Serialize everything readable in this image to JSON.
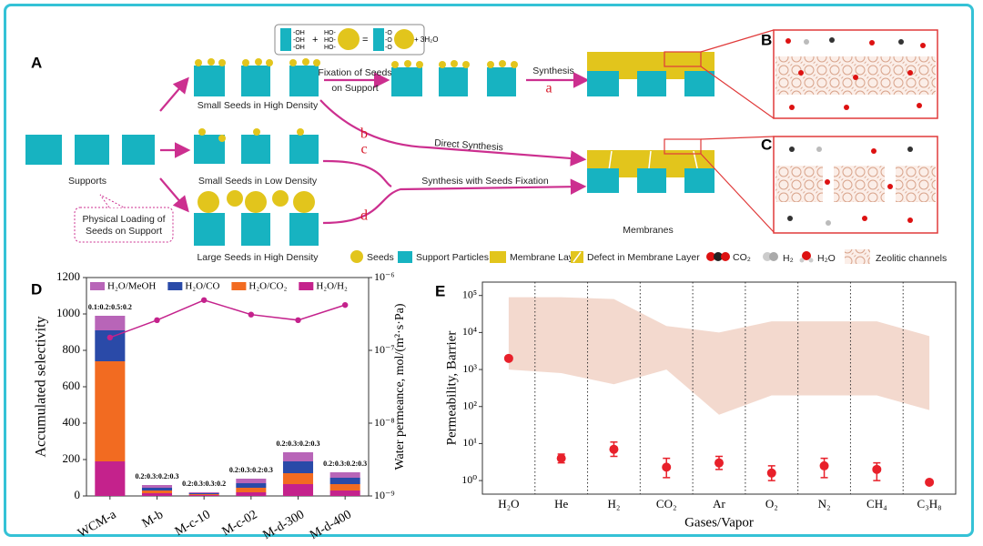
{
  "diagram": {
    "panel_labels": [
      "A",
      "B",
      "C"
    ],
    "equation": {
      "left": [
        "-OH",
        "-OH",
        "-OH"
      ],
      "middle": [
        "HO-",
        "HO-",
        "HO-"
      ],
      "product": [
        "-O",
        "-O",
        "-O"
      ],
      "plus": "+",
      "equals": "=",
      "byproduct": "+ 3H₂O"
    },
    "supports": "Supports",
    "seed_states": [
      "Small Seeds in High Density",
      "Small Seeds in Low Density",
      "Large Seeds in High Density"
    ],
    "callout": [
      "Physical Loading of",
      "Seeds on Support"
    ],
    "fixation": [
      "Fixation of Seeds",
      "on Support"
    ],
    "synthesis": "Synthesis",
    "routes": [
      "a",
      "b",
      "c",
      "d"
    ],
    "direct": "Direct Synthesis",
    "seeded": "Synthesis with Seeds Fixation",
    "membranes": "Membranes",
    "legend": [
      "Seeds",
      "Support Particles",
      "Membrane Layer",
      "Defect in Membrane Layer",
      "CO₂",
      "H₂",
      "H₂O",
      "Zeolitic channels"
    ]
  },
  "chart_data": [
    {
      "type": "bar",
      "panel": "D",
      "categories": [
        "WCM-a",
        "M-b",
        "M-c-10",
        "M-c-02",
        "M-d-300",
        "M-d-400"
      ],
      "annotations": [
        "0.1:0.2:0.5:0.2",
        "0.2:0.3:0.2:0.3",
        "0.2:0.3:0.3:0.2",
        "0.2:0.3:0.2:0.3",
        "0.2:0.3:0.2:0.3",
        "0.2:0.3:0.2:0.3"
      ],
      "series": [
        {
          "name": "H₂O/H₂",
          "color": "#c4228c",
          "values": [
            190,
            15,
            5,
            20,
            65,
            30
          ]
        },
        {
          "name": "H₂O/CO₂",
          "color": "#f26b21",
          "values": [
            550,
            15,
            5,
            25,
            60,
            35
          ]
        },
        {
          "name": "H₂O/CO",
          "color": "#2a4aa8",
          "values": [
            170,
            15,
            5,
            25,
            65,
            35
          ]
        },
        {
          "name": "H₂O/MeOH",
          "color": "#b865b8",
          "values": [
            80,
            15,
            5,
            25,
            50,
            30
          ]
        },
        {
          "type": "line",
          "axis": "y2",
          "color": "#c4228c",
          "values": [
            1.5e-07,
            2.6e-07,
            4.9e-07,
            3.1e-07,
            2.6e-07,
            4.2e-07
          ]
        }
      ],
      "y_label": "Accumulated selectivity",
      "y2_label": "Water permeance, mol/(m²·s·Pa)",
      "ylim": [
        0,
        1200
      ],
      "yticks": [
        0,
        200,
        400,
        600,
        800,
        1000,
        1200
      ],
      "y2lim": [
        1e-09,
        1e-06
      ],
      "y2_log": true,
      "y2ticks": [
        {
          "value": 1e-09,
          "label": "10⁻⁹"
        },
        {
          "value": 1e-08,
          "label": "10⁻⁸"
        },
        {
          "value": 1e-07,
          "label": "10⁻⁷"
        },
        {
          "value": 1e-06,
          "label": "10⁻⁶"
        }
      ]
    },
    {
      "type": "scatter",
      "panel": "E",
      "categories": [
        "H₂O",
        "He",
        "H₂",
        "CO₂",
        "Ar",
        "O₂",
        "N₂",
        "CH₄",
        "C₃H₈"
      ],
      "band": {
        "color": "#f1d2c6",
        "upper": [
          90000,
          90000,
          80000,
          15000,
          10000,
          20000,
          20000,
          20000,
          8000
        ],
        "lower": [
          1000,
          800,
          400,
          1000,
          60,
          200,
          200,
          200,
          80
        ]
      },
      "series": [
        {
          "color": "#e8202a",
          "values": [
            2000,
            4,
            7,
            2.3,
            3,
            1.6,
            2.5,
            2,
            0.9
          ],
          "lower": [
            1800,
            3,
            4.5,
            1.2,
            2,
            1,
            1.2,
            1,
            0.8
          ],
          "upper": [
            2200,
            5.2,
            11,
            4,
            4.5,
            2.5,
            4,
            3,
            1
          ]
        }
      ],
      "y_label": "Permeability, Barrier",
      "x_label": "Gases/Vapor",
      "ylim": [
        0.43,
        230000
      ],
      "y_log": true,
      "yticks": [
        {
          "value": 1,
          "label": "10⁰"
        },
        {
          "value": 10,
          "label": "10¹"
        },
        {
          "value": 100,
          "label": "10²"
        },
        {
          "value": 1000,
          "label": "10³"
        },
        {
          "value": 10000,
          "label": "10⁴"
        },
        {
          "value": 100000,
          "label": "10⁵"
        }
      ]
    }
  ]
}
